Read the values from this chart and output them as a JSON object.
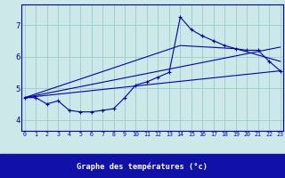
{
  "xlabel": "Graphe des températures (°c)",
  "bg_color": "#cce8e8",
  "grid_color": "#99cccc",
  "line_color": "#0000bb",
  "label_bg": "#1111aa",
  "label_fg": "#ffffff",
  "xlim": [
    -0.3,
    23.3
  ],
  "ylim": [
    3.65,
    7.65
  ],
  "yticks": [
    4,
    5,
    6,
    7
  ],
  "xticks": [
    0,
    1,
    2,
    3,
    4,
    5,
    6,
    7,
    8,
    9,
    10,
    11,
    12,
    13,
    14,
    15,
    16,
    17,
    18,
    19,
    20,
    21,
    22,
    23
  ],
  "series_main_x": [
    0,
    1,
    2,
    3,
    4,
    5,
    6,
    7,
    8,
    9,
    10,
    11,
    12,
    13,
    14,
    15,
    16,
    17,
    18,
    19,
    20,
    21,
    22,
    23
  ],
  "series_main_y": [
    4.7,
    4.7,
    4.5,
    4.6,
    4.3,
    4.25,
    4.25,
    4.3,
    4.35,
    4.7,
    5.1,
    5.2,
    5.35,
    5.5,
    7.25,
    6.85,
    6.65,
    6.5,
    6.35,
    6.25,
    6.2,
    6.2,
    5.85,
    5.55
  ],
  "line1_x": [
    0,
    23
  ],
  "line1_y": [
    4.7,
    5.55
  ],
  "line2_x": [
    0,
    14,
    19,
    23
  ],
  "line2_y": [
    4.7,
    6.35,
    6.25,
    5.85
  ],
  "line3_x": [
    0,
    23
  ],
  "line3_y": [
    4.7,
    6.3
  ]
}
